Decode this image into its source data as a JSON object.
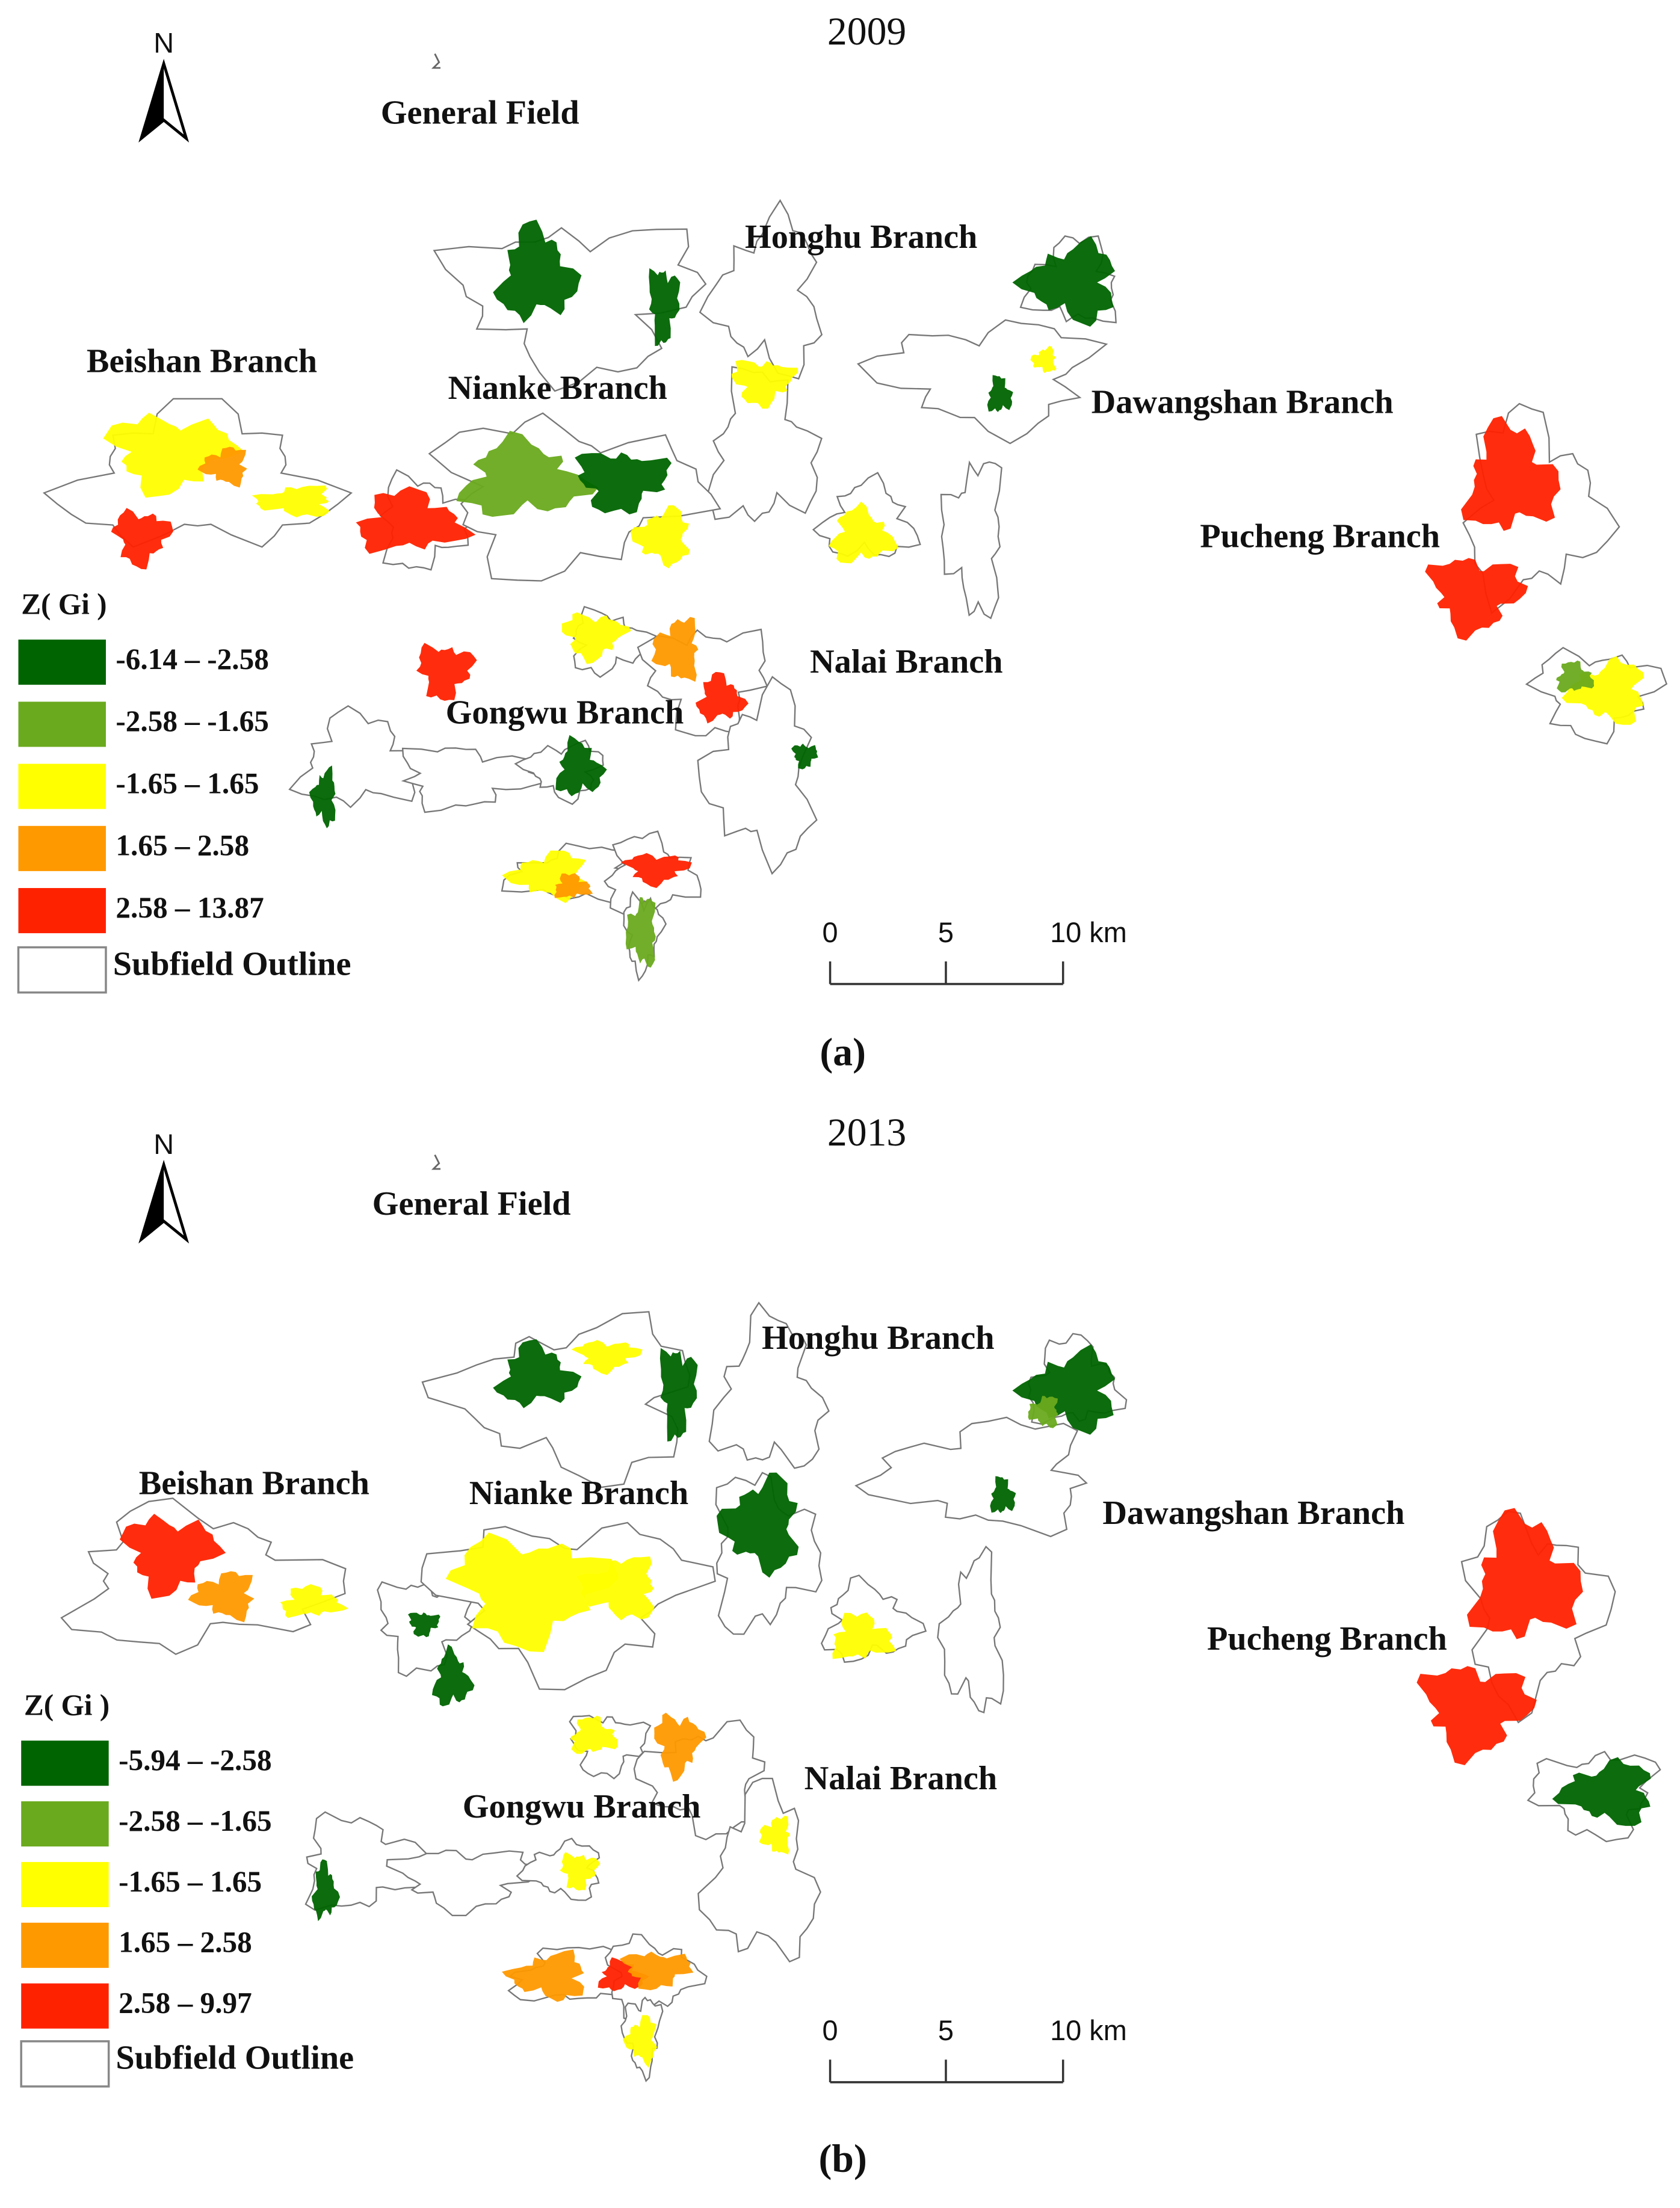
{
  "panels": [
    {
      "year": "2009",
      "north": "N",
      "general_field": "General Field",
      "branches": [
        "Honghu Branch",
        "Beishan Branch",
        "Nianke Branch",
        "Dawangshan Branch",
        "Pucheng Branch",
        "Nalai Branch",
        "Gongwu Branch"
      ],
      "legend": {
        "title": "Z( Gi )",
        "items": [
          {
            "label": "-6.14 – -2.58",
            "color": "#006400"
          },
          {
            "label": "-2.58 – -1.65",
            "color": "#6aaa1e"
          },
          {
            "label": "-1.65 – 1.65",
            "color": "#ffff00"
          },
          {
            "label": "1.65 – 2.58",
            "color": "#ff9900"
          },
          {
            "label": "2.58 – 13.87",
            "color": "#ff2200"
          }
        ],
        "outline": "Subfield Outline"
      },
      "scale_bar": [
        "0",
        "5",
        "10 km"
      ],
      "caption": "(a)"
    },
    {
      "year": "2013",
      "north": "N",
      "general_field": "General Field",
      "branches": [
        "Honghu Branch",
        "Beishan Branch",
        "Nianke Branch",
        "Dawangshan Branch",
        "Pucheng Branch",
        "Nalai Branch",
        "Gongwu Branch"
      ],
      "legend": {
        "title": "Z( Gi )",
        "items": [
          {
            "label": "-5.94 – -2.58",
            "color": "#006400"
          },
          {
            "label": "-2.58 – -1.65",
            "color": "#6aaa1e"
          },
          {
            "label": "-1.65 – 1.65",
            "color": "#ffff00"
          },
          {
            "label": "1.65 – 2.58",
            "color": "#ff9900"
          },
          {
            "label": "2.58 – 9.97",
            "color": "#ff2200"
          }
        ],
        "outline": "Subfield Outline"
      },
      "scale_bar": [
        "0",
        "5",
        "10 km"
      ],
      "caption": "(b)"
    }
  ]
}
